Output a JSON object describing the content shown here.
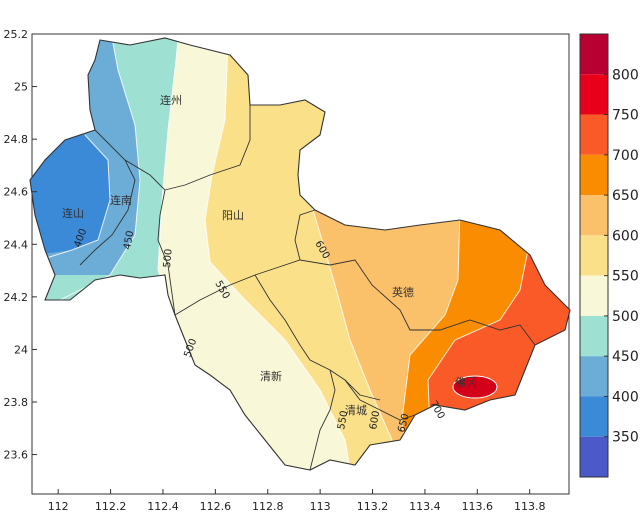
{
  "map": {
    "lon_ticks": [
      "112",
      "112.2",
      "112.4",
      "112.6",
      "112.8",
      "113",
      "113.2",
      "113.4",
      "113.6",
      "113.8"
    ],
    "lat_ticks": [
      "25.2",
      "25",
      "24.8",
      "24.6",
      "24.4",
      "24.2",
      "24",
      "23.8",
      "23.6"
    ],
    "lon_range": [
      111.9,
      113.95
    ],
    "lat_range": [
      23.45,
      25.2
    ],
    "place_labels": [
      "连州",
      "连南",
      "阳山",
      "英德",
      "清新",
      "清城",
      "佛冈",
      "连山"
    ],
    "contour_labels": [
      "400",
      "450",
      "500",
      "500",
      "550",
      "550",
      "600",
      "600",
      "650",
      "700"
    ]
  },
  "legend": {
    "levels": [
      "800",
      "750",
      "700",
      "650",
      "600",
      "550",
      "500",
      "450",
      "400",
      "350"
    ],
    "colors": [
      "#b80032",
      "#e8001a",
      "#fa5a28",
      "#f98c00",
      "#fac06a",
      "#fbe08a",
      "#f8f7d8",
      "#9ee0d2",
      "#6cadd8",
      "#3a8ad8",
      "#4b5ac8"
    ]
  }
}
